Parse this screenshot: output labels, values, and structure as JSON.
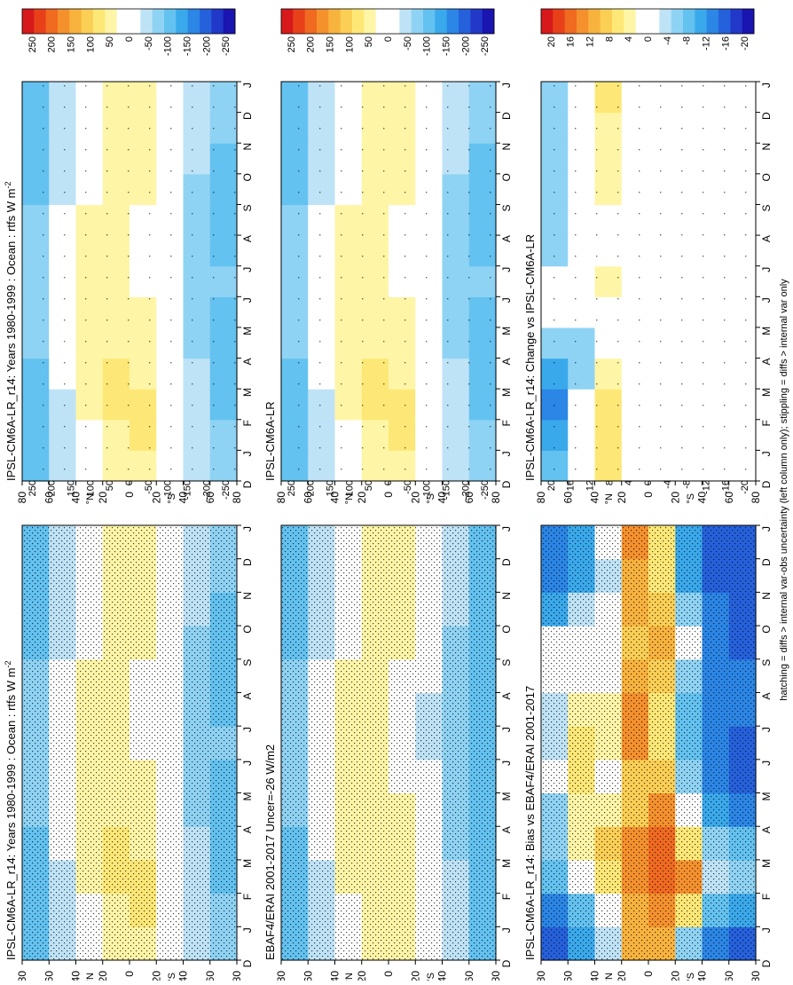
{
  "footer": "hatching = diffs > internal var-obs uncertainty (left column only); stippling = diffs > internal var only",
  "x_labels": [
    "D",
    "J",
    "F",
    "M",
    "A",
    "M",
    "J",
    "J",
    "A",
    "S",
    "O",
    "N",
    "D",
    "J"
  ],
  "y_labels": [
    "80",
    "60",
    "40",
    "20",
    "0",
    "20",
    "40",
    "60",
    "80"
  ],
  "y_hemi_labels": [
    "°N",
    "°S"
  ],
  "colorbars": {
    "main": {
      "ticks": [
        "250",
        "200",
        "150",
        "100",
        "50",
        "0",
        "-50",
        "-100",
        "-150",
        "-200",
        "-250"
      ],
      "colors": [
        "#d7191c",
        "#e8411a",
        "#f06a20",
        "#f5912d",
        "#f8b33e",
        "#fbcf55",
        "#fde877",
        "#fef5a7",
        "#ffffff",
        "#ffffff",
        "#bfe3f6",
        "#8fd3f4",
        "#63c2f0",
        "#3aa9ec",
        "#2b86e6",
        "#2661dc",
        "#2138c9",
        "#1a14b0"
      ]
    },
    "diff": {
      "ticks": [
        "20",
        "16",
        "12",
        "8",
        "4",
        "0",
        "-4",
        "-8",
        "-12",
        "-16",
        "-20"
      ],
      "colors": [
        "#d7191c",
        "#e8411a",
        "#f06a20",
        "#f5912d",
        "#f8b33e",
        "#fbcf55",
        "#fde877",
        "#fef5a7",
        "#ffffff",
        "#ffffff",
        "#bfe3f6",
        "#8fd3f4",
        "#63c2f0",
        "#3aa9ec",
        "#2b86e6",
        "#2661dc",
        "#2138c9",
        "#1a14b0"
      ]
    }
  },
  "chart_data": [
    {
      "id": "p1",
      "type": "heatmap",
      "title": "IPSL-CM6A-LR_r14: Years 1980-1999 : Ocean : rtfs W m",
      "title_sup": "-2",
      "colorbar": "main",
      "dense_stipple": true,
      "x": [
        "D",
        "J",
        "F",
        "M",
        "A",
        "M",
        "J",
        "J",
        "A",
        "S",
        "O",
        "N",
        "D",
        "J"
      ],
      "y": [
        80,
        60,
        40,
        20,
        0,
        -20,
        -40,
        -60,
        -80
      ],
      "values": [
        [
          -120,
          -125,
          -130,
          -130,
          -120,
          -110,
          -100,
          -95,
          -100,
          -110,
          -115,
          -120,
          -120,
          -120
        ],
        [
          -80,
          -85,
          -80,
          -70,
          -55,
          -40,
          -30,
          -35,
          -50,
          -65,
          -75,
          -80,
          -80,
          -80
        ],
        [
          -15,
          -10,
          -5,
          10,
          25,
          35,
          40,
          35,
          20,
          5,
          -10,
          -15,
          -15,
          -15
        ],
        [
          50,
          55,
          55,
          60,
          60,
          55,
          50,
          45,
          50,
          50,
          45,
          50,
          50,
          50
        ],
        [
          45,
          50,
          55,
          60,
          55,
          45,
          40,
          40,
          35,
          40,
          45,
          45,
          45,
          45
        ],
        [
          60,
          60,
          60,
          55,
          40,
          25,
          10,
          5,
          10,
          20,
          40,
          55,
          60,
          60
        ],
        [
          -10,
          -5,
          -5,
          -15,
          -30,
          -45,
          -60,
          -60,
          -55,
          -40,
          -25,
          -10,
          -10,
          -10
        ],
        [
          -70,
          -65,
          -70,
          -80,
          -90,
          -95,
          -95,
          -95,
          -95,
          -90,
          -85,
          -75,
          -70,
          -70
        ],
        [
          -90,
          -95,
          -100,
          -100,
          -95,
          -80,
          -70,
          -70,
          -75,
          -85,
          -90,
          -90,
          -90,
          -90
        ]
      ]
    },
    {
      "id": "p2",
      "type": "heatmap",
      "title": "IPSL-CM6A-LR_r14: Years 1980-1999 : Ocean : rtfs W m",
      "title_sup": "-2",
      "colorbar": "main",
      "dense_stipple": false,
      "x": [
        "D",
        "J",
        "F",
        "M",
        "A",
        "M",
        "J",
        "J",
        "A",
        "S",
        "O",
        "N",
        "D",
        "J"
      ],
      "y": [
        80,
        60,
        40,
        20,
        0,
        -20,
        -40,
        -60,
        -80
      ],
      "values": [
        [
          -120,
          -125,
          -130,
          -130,
          -120,
          -110,
          -100,
          -95,
          -100,
          -110,
          -115,
          -120,
          -120,
          -120
        ],
        [
          -80,
          -85,
          -80,
          -70,
          -55,
          -40,
          -30,
          -35,
          -50,
          -65,
          -75,
          -80,
          -80,
          -80
        ],
        [
          -15,
          -10,
          -5,
          10,
          25,
          35,
          40,
          35,
          20,
          5,
          -10,
          -15,
          -15,
          -15
        ],
        [
          50,
          55,
          55,
          60,
          60,
          55,
          50,
          45,
          50,
          50,
          45,
          50,
          50,
          50
        ],
        [
          45,
          50,
          55,
          60,
          55,
          45,
          40,
          40,
          35,
          40,
          45,
          45,
          45,
          45
        ],
        [
          60,
          60,
          60,
          55,
          40,
          25,
          10,
          5,
          10,
          20,
          40,
          55,
          60,
          60
        ],
        [
          -10,
          -5,
          -5,
          -15,
          -30,
          -45,
          -60,
          -60,
          -55,
          -40,
          -25,
          -10,
          -10,
          -10
        ],
        [
          -70,
          -65,
          -70,
          -80,
          -90,
          -95,
          -95,
          -95,
          -95,
          -90,
          -85,
          -75,
          -70,
          -70
        ],
        [
          -90,
          -95,
          -100,
          -100,
          -95,
          -80,
          -70,
          -70,
          -75,
          -85,
          -90,
          -90,
          -90,
          -90
        ]
      ]
    },
    {
      "id": "p3",
      "type": "heatmap",
      "title": "EBAF4/ERAI 2001-2017 Uncer=-26 W/m2",
      "title_sup": "",
      "colorbar": "main",
      "dense_stipple": true,
      "x": [
        "D",
        "J",
        "F",
        "M",
        "A",
        "M",
        "J",
        "J",
        "A",
        "S",
        "O",
        "N",
        "D",
        "J"
      ],
      "y": [
        80,
        60,
        40,
        20,
        0,
        -20,
        -40,
        -60,
        -80
      ],
      "values": [
        [
          -115,
          -120,
          -125,
          -125,
          -115,
          -105,
          -95,
          -90,
          -95,
          -105,
          -110,
          -115,
          -115,
          -115
        ],
        [
          -75,
          -80,
          -75,
          -65,
          -50,
          -35,
          -25,
          -30,
          -45,
          -60,
          -70,
          -75,
          -75,
          -75
        ],
        [
          -10,
          -5,
          0,
          15,
          30,
          35,
          40,
          35,
          25,
          10,
          -5,
          -10,
          -10,
          -10
        ],
        [
          45,
          50,
          50,
          55,
          55,
          50,
          45,
          40,
          45,
          45,
          40,
          45,
          45,
          45
        ],
        [
          35,
          40,
          45,
          45,
          40,
          35,
          30,
          30,
          25,
          30,
          35,
          35,
          35,
          35
        ],
        [
          55,
          55,
          55,
          50,
          35,
          20,
          5,
          0,
          5,
          15,
          35,
          50,
          55,
          55
        ],
        [
          -15,
          -10,
          -10,
          -20,
          -35,
          -50,
          -65,
          -65,
          -60,
          -45,
          -30,
          -15,
          -15,
          -15
        ],
        [
          -75,
          -70,
          -75,
          -85,
          -95,
          -100,
          -100,
          -100,
          -100,
          -95,
          -90,
          -80,
          -75,
          -75
        ],
        [
          -95,
          -100,
          -105,
          -105,
          -100,
          -85,
          -75,
          -75,
          -80,
          -90,
          -95,
          -95,
          -95,
          -95
        ]
      ]
    },
    {
      "id": "p4",
      "type": "heatmap",
      "title": "IPSL-CM6A-LR",
      "title_sup": "",
      "colorbar": "main",
      "dense_stipple": false,
      "x": [
        "D",
        "J",
        "F",
        "M",
        "A",
        "M",
        "J",
        "J",
        "A",
        "S",
        "O",
        "N",
        "D",
        "J"
      ],
      "y": [
        80,
        60,
        40,
        20,
        0,
        -20,
        -40,
        -60,
        -80
      ],
      "values": [
        [
          -120,
          -125,
          -130,
          -130,
          -120,
          -110,
          -100,
          -95,
          -100,
          -110,
          -115,
          -120,
          -120,
          -120
        ],
        [
          -80,
          -85,
          -80,
          -70,
          -55,
          -40,
          -30,
          -35,
          -50,
          -65,
          -75,
          -80,
          -80,
          -80
        ],
        [
          -15,
          -10,
          -5,
          10,
          25,
          35,
          40,
          35,
          20,
          5,
          -10,
          -15,
          -15,
          -15
        ],
        [
          50,
          55,
          55,
          60,
          60,
          55,
          50,
          45,
          50,
          50,
          45,
          50,
          50,
          50
        ],
        [
          45,
          50,
          55,
          60,
          55,
          45,
          40,
          40,
          35,
          40,
          45,
          45,
          45,
          45
        ],
        [
          60,
          60,
          60,
          55,
          40,
          25,
          10,
          5,
          10,
          20,
          40,
          55,
          60,
          60
        ],
        [
          -10,
          -5,
          -5,
          -15,
          -30,
          -45,
          -60,
          -60,
          -55,
          -40,
          -25,
          -10,
          -10,
          -10
        ],
        [
          -70,
          -65,
          -70,
          -80,
          -90,
          -95,
          -95,
          -95,
          -95,
          -90,
          -85,
          -75,
          -70,
          -70
        ],
        [
          -90,
          -95,
          -100,
          -100,
          -95,
          -80,
          -70,
          -70,
          -75,
          -85,
          -90,
          -90,
          -90,
          -90
        ]
      ]
    },
    {
      "id": "p5",
      "type": "heatmap",
      "title": "IPSL-CM6A-LR_r14: Bias vs EBAF4/ERAI 2001-2017",
      "title_sup": "",
      "colorbar": "diff",
      "dense_stipple": true,
      "x": [
        "D",
        "J",
        "F",
        "M",
        "A",
        "M",
        "J",
        "J",
        "A",
        "S",
        "O",
        "N",
        "D",
        "J"
      ],
      "y": [
        80,
        60,
        40,
        20,
        0,
        -20,
        -40,
        -60,
        -80
      ],
      "values": [
        [
          -18,
          -16,
          -14,
          -12,
          -10,
          -14,
          -16,
          -18,
          -12,
          -8,
          -14,
          -16,
          -18,
          -18
        ],
        [
          -8,
          -12,
          -6,
          4,
          -6,
          8,
          14,
          10,
          6,
          12,
          4,
          -10,
          -8,
          -8
        ],
        [
          -10,
          -6,
          -4,
          6,
          8,
          4,
          -4,
          2,
          -8,
          -6,
          -2,
          -8,
          -10,
          -10
        ],
        [
          6,
          -4,
          10,
          12,
          6,
          -2,
          2,
          12,
          8,
          -2,
          6,
          -4,
          6,
          6
        ],
        [
          18,
          16,
          14,
          16,
          14,
          16,
          18,
          14,
          16,
          14,
          16,
          18,
          18,
          18
        ],
        [
          -6,
          8,
          12,
          14,
          10,
          6,
          -6,
          -8,
          -4,
          8,
          4,
          -6,
          -6,
          -6
        ],
        [
          -12,
          -10,
          12,
          8,
          -6,
          -12,
          -10,
          -8,
          -12,
          -10,
          -8,
          -12,
          -12,
          -12
        ],
        [
          -16,
          -14,
          -18,
          -16,
          -12,
          -14,
          -16,
          -14,
          -12,
          -16,
          -14,
          -16,
          -16,
          -16
        ],
        [
          -14,
          -12,
          8,
          6,
          -10,
          -12,
          -14,
          -12,
          -10,
          -12,
          -14,
          -14,
          -14,
          -14
        ]
      ]
    },
    {
      "id": "p6",
      "type": "heatmap",
      "title": "IPSL-CM6A-LR_r14: Change vs IPSL-CM6A-LR",
      "title_sup": "",
      "colorbar": "diff",
      "dense_stipple": false,
      "x": [
        "D",
        "J",
        "F",
        "M",
        "A",
        "M",
        "J",
        "J",
        "A",
        "S",
        "O",
        "N",
        "D",
        "J"
      ],
      "y": [
        80,
        60,
        40,
        20,
        0,
        -20,
        -40,
        -60,
        -80
      ],
      "values": [
        [
          -6,
          -8,
          -10,
          -12,
          -8,
          -2,
          0,
          -4,
          -6,
          -4,
          -6,
          -8,
          -6,
          -6
        ],
        [
          -4,
          -10,
          -12,
          -14,
          -10,
          -4,
          0,
          -2,
          -6,
          -2,
          -8,
          -4,
          -4,
          -4
        ],
        [
          8,
          10,
          14,
          8,
          -4,
          0,
          6,
          4,
          0,
          6,
          10,
          4,
          8,
          8
        ],
        [
          4,
          0,
          -2,
          6,
          0,
          2,
          0,
          0,
          2,
          0,
          0,
          0,
          4,
          4
        ],
        [
          0,
          0,
          0,
          0,
          0,
          0,
          0,
          0,
          0,
          0,
          0,
          0,
          0,
          0
        ],
        [
          0,
          -4,
          0,
          0,
          0,
          6,
          0,
          0,
          -4,
          0,
          0,
          0,
          0,
          0
        ],
        [
          0,
          -4,
          0,
          0,
          -4,
          0,
          0,
          -4,
          0,
          0,
          -4,
          0,
          0,
          0
        ],
        [
          0,
          0,
          0,
          0,
          -4,
          0,
          0,
          0,
          0,
          -4,
          0,
          0,
          0,
          0
        ],
        [
          0,
          0,
          0,
          0,
          0,
          0,
          0,
          0,
          0,
          0,
          0,
          0,
          0,
          0
        ]
      ]
    }
  ]
}
